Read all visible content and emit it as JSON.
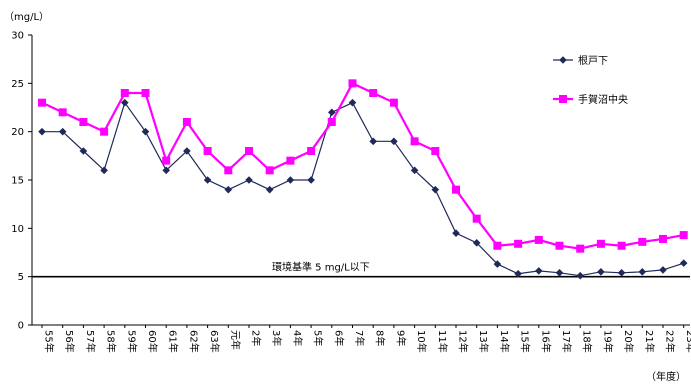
{
  "chart_data": {
    "type": "line",
    "ylabel": "（mg/L）",
    "xlabel": "（年度）",
    "ylim": [
      0,
      30
    ],
    "yticks": [
      "0",
      "5",
      "10",
      "15",
      "20",
      "25",
      "30"
    ],
    "grid": false,
    "legend_position": "top-right",
    "categories": [
      "55年",
      "56年",
      "57年",
      "58年",
      "59年",
      "60年",
      "61年",
      "62年",
      "63年",
      "元年",
      "2年",
      "3年",
      "4年",
      "5年",
      "6年",
      "7年",
      "8年",
      "9年",
      "10年",
      "11年",
      "12年",
      "13年",
      "14年",
      "15年",
      "16年",
      "17年",
      "18年",
      "19年",
      "20年",
      "21年",
      "22年",
      "23年"
    ],
    "series": [
      {
        "name": "根戸下",
        "color": "#1f2a5a",
        "marker": "diamond",
        "values": [
          20,
          20,
          18,
          16,
          23,
          20,
          16,
          18,
          15,
          14,
          15,
          14,
          15,
          15,
          22,
          23,
          19,
          19,
          16,
          14,
          9.5,
          8.5,
          6.3,
          5.3,
          5.6,
          5.4,
          5.1,
          5.5,
          5.4,
          5.5,
          5.7,
          6.4
        ]
      },
      {
        "name": "手賀沼中央",
        "color": "#ff00ff",
        "marker": "square",
        "values": [
          23,
          22,
          21,
          20,
          24,
          24,
          17,
          21,
          18,
          16,
          18,
          16,
          17,
          18,
          21,
          25,
          24,
          23,
          19,
          18,
          14,
          11,
          8.2,
          8.4,
          8.8,
          8.2,
          7.9,
          8.4,
          8.2,
          8.6,
          8.9,
          9.3
        ]
      }
    ],
    "reference_line": {
      "value": 5,
      "label": "環境基準 5 mg/L以下",
      "color": "#000000"
    }
  }
}
